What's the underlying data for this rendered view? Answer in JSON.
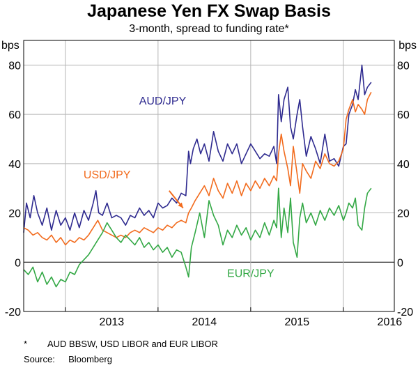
{
  "chart_data": {
    "type": "line",
    "title": "Japanese Yen FX Swap Basis",
    "subtitle": "3-month, spread to funding rate*",
    "ylabel_left": "bps",
    "ylabel_right": "bps",
    "ylim": [
      -20,
      90
    ],
    "yticks": [
      -20,
      0,
      20,
      40,
      60,
      80
    ],
    "ytick_labels": [
      "-20",
      "0",
      "20",
      "40",
      "60",
      "80"
    ],
    "xlim": [
      2012.55,
      2016.55
    ],
    "xtick_labels": [
      "2013",
      "2014",
      "2015",
      "2016"
    ],
    "grid": true,
    "series": [
      {
        "name": "AUD/JPY",
        "color": "#2e2a8f",
        "label_at": [
          2014.05,
          64
        ],
        "x": [
          2012.55,
          2012.58,
          2012.62,
          2012.66,
          2012.7,
          2012.75,
          2012.8,
          2012.85,
          2012.9,
          2012.95,
          2013.0,
          2013.05,
          2013.1,
          2013.15,
          2013.2,
          2013.25,
          2013.3,
          2013.33,
          2013.36,
          2013.4,
          2013.45,
          2013.5,
          2013.55,
          2013.6,
          2013.65,
          2013.7,
          2013.75,
          2013.8,
          2013.85,
          2013.9,
          2013.95,
          2014.0,
          2014.05,
          2014.1,
          2014.15,
          2014.2,
          2014.25,
          2014.3,
          2014.33,
          2014.35,
          2014.38,
          2014.42,
          2014.46,
          2014.5,
          2014.55,
          2014.6,
          2014.65,
          2014.7,
          2014.75,
          2014.8,
          2014.85,
          2014.9,
          2014.95,
          2015.0,
          2015.05,
          2015.1,
          2015.15,
          2015.2,
          2015.25,
          2015.28,
          2015.3,
          2015.33,
          2015.36,
          2015.4,
          2015.43,
          2015.46,
          2015.5,
          2015.53,
          2015.56,
          2015.6,
          2015.65,
          2015.7,
          2015.75,
          2015.8,
          2015.85,
          2015.9,
          2015.95,
          2016.0,
          2016.03,
          2016.06,
          2016.1,
          2016.13,
          2016.16,
          2016.2,
          2016.23,
          2016.26,
          2016.3
        ],
        "y": [
          12,
          24,
          18,
          27,
          20,
          15,
          22,
          13,
          21,
          15,
          18,
          13,
          20,
          14,
          21,
          17,
          24,
          29,
          20,
          19,
          24,
          18,
          19,
          18,
          15,
          19,
          18,
          22,
          19,
          21,
          18,
          24,
          22,
          23,
          26,
          24,
          28,
          27,
          45,
          40,
          46,
          50,
          44,
          48,
          41,
          53,
          45,
          41,
          48,
          44,
          48,
          40,
          44,
          48,
          45,
          42,
          44,
          43,
          47,
          40,
          68,
          57,
          66,
          71,
          55,
          50,
          60,
          66,
          55,
          43,
          51,
          46,
          40,
          52,
          41,
          42,
          39,
          47,
          48,
          60,
          64,
          70,
          66,
          80,
          68,
          71,
          73
        ]
      },
      {
        "name": "USD/JPY",
        "color": "#f26b1d",
        "label_at": [
          2013.45,
          34
        ],
        "x": [
          2012.55,
          2012.6,
          2012.65,
          2012.7,
          2012.75,
          2012.8,
          2012.85,
          2012.9,
          2012.95,
          2013.0,
          2013.05,
          2013.1,
          2013.15,
          2013.2,
          2013.25,
          2013.3,
          2013.35,
          2013.4,
          2013.45,
          2013.5,
          2013.55,
          2013.6,
          2013.65,
          2013.7,
          2013.75,
          2013.8,
          2013.85,
          2013.9,
          2013.95,
          2014.0,
          2014.05,
          2014.1,
          2014.15,
          2014.2,
          2014.25,
          2014.3,
          2014.33,
          2014.36,
          2014.4,
          2014.45,
          2014.5,
          2014.55,
          2014.6,
          2014.65,
          2014.7,
          2014.75,
          2014.8,
          2014.85,
          2014.9,
          2014.95,
          2015.0,
          2015.05,
          2015.1,
          2015.15,
          2015.2,
          2015.25,
          2015.28,
          2015.3,
          2015.33,
          2015.36,
          2015.4,
          2015.43,
          2015.46,
          2015.5,
          2015.53,
          2015.56,
          2015.6,
          2015.65,
          2015.7,
          2015.75,
          2015.8,
          2015.85,
          2015.9,
          2015.95,
          2016.0,
          2016.03,
          2016.06,
          2016.1,
          2016.13,
          2016.16,
          2016.2,
          2016.23,
          2016.26,
          2016.3
        ],
        "y": [
          14,
          13,
          11,
          12,
          10,
          9,
          11,
          8,
          10,
          7,
          9,
          8,
          10,
          9,
          11,
          14,
          17,
          13,
          12,
          11,
          10,
          11,
          10,
          12,
          13,
          12,
          14,
          13,
          12,
          14,
          13,
          15,
          14,
          16,
          17,
          16,
          20,
          22,
          25,
          28,
          31,
          27,
          34,
          29,
          26,
          32,
          28,
          33,
          27,
          32,
          29,
          33,
          30,
          34,
          31,
          35,
          33,
          44,
          52,
          45,
          38,
          31,
          47,
          36,
          28,
          40,
          37,
          34,
          41,
          38,
          44,
          40,
          39,
          41,
          46,
          58,
          62,
          66,
          61,
          64,
          62,
          60,
          66,
          69
        ]
      },
      {
        "name": "EUR/JPY",
        "color": "#33a845",
        "label_at": [
          2015.0,
          -6
        ],
        "x": [
          2012.55,
          2012.6,
          2012.65,
          2012.7,
          2012.75,
          2012.8,
          2012.85,
          2012.9,
          2012.95,
          2013.0,
          2013.05,
          2013.1,
          2013.15,
          2013.2,
          2013.25,
          2013.3,
          2013.35,
          2013.4,
          2013.45,
          2013.5,
          2013.55,
          2013.6,
          2013.65,
          2013.7,
          2013.75,
          2013.8,
          2013.85,
          2013.9,
          2013.95,
          2014.0,
          2014.05,
          2014.1,
          2014.15,
          2014.2,
          2014.25,
          2014.3,
          2014.33,
          2014.36,
          2014.4,
          2014.45,
          2014.5,
          2014.55,
          2014.6,
          2014.65,
          2014.7,
          2014.75,
          2014.8,
          2014.85,
          2014.9,
          2014.95,
          2015.0,
          2015.05,
          2015.1,
          2015.15,
          2015.2,
          2015.25,
          2015.28,
          2015.3,
          2015.33,
          2015.36,
          2015.4,
          2015.43,
          2015.46,
          2015.5,
          2015.53,
          2015.56,
          2015.6,
          2015.65,
          2015.7,
          2015.75,
          2015.8,
          2015.85,
          2015.9,
          2015.95,
          2016.0,
          2016.03,
          2016.06,
          2016.1,
          2016.13,
          2016.16,
          2016.2,
          2016.23,
          2016.26,
          2016.3
        ],
        "y": [
          -3,
          -5,
          -2,
          -8,
          -4,
          -9,
          -6,
          -10,
          -7,
          -8,
          -4,
          -5,
          -1,
          1,
          3,
          6,
          9,
          12,
          16,
          13,
          10,
          8,
          11,
          9,
          7,
          10,
          6,
          8,
          5,
          7,
          4,
          6,
          2,
          5,
          4,
          -2,
          -6,
          6,
          12,
          20,
          10,
          25,
          19,
          15,
          7,
          13,
          10,
          15,
          11,
          14,
          9,
          13,
          10,
          16,
          11,
          17,
          14,
          30,
          10,
          22,
          12,
          26,
          8,
          2,
          18,
          24,
          16,
          20,
          15,
          21,
          17,
          22,
          19,
          23,
          17,
          20,
          24,
          22,
          26,
          15,
          13,
          22,
          28,
          30
        ]
      }
    ]
  },
  "footnotes": {
    "note_marker": "*",
    "note_text": "AUD BBSW, USD LIBOR and EUR LIBOR",
    "source_key": "Source:",
    "source_text": "Bloomberg"
  }
}
